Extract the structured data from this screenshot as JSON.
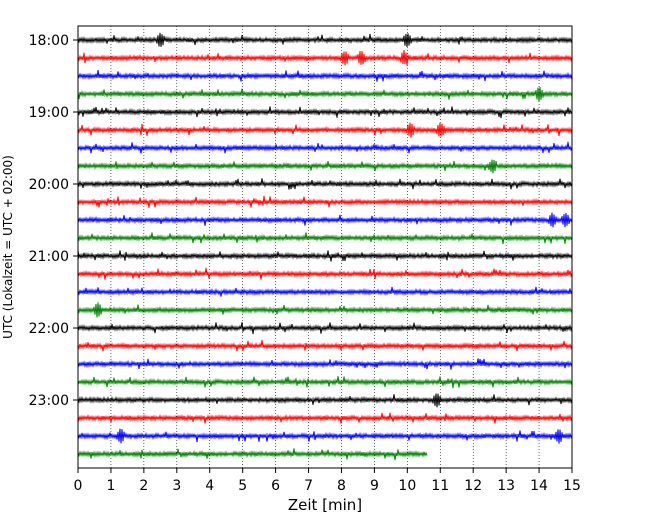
{
  "chart_data": {
    "type": "line",
    "title": "",
    "xlabel": "Zeit  [min]",
    "ylabel": "UTC (Lokalzeit = UTC + 02:00)",
    "xlim": [
      0,
      15
    ],
    "x_ticks": [
      "0",
      "1",
      "2",
      "3",
      "4",
      "5",
      "6",
      "7",
      "8",
      "9",
      "10",
      "11",
      "12",
      "13",
      "14",
      "15"
    ],
    "y_tick_labels": [
      "18:00",
      "19:00",
      "20:00",
      "21:00",
      "22:00",
      "23:00"
    ],
    "grid": "vertical-dotted",
    "trace_interval_min": 15,
    "trace_colors": [
      "#000000",
      "#ff0000",
      "#0000ff",
      "#008000"
    ],
    "traces": [
      {
        "start": "18:00",
        "end_min": 15
      },
      {
        "start": "18:15",
        "end_min": 15
      },
      {
        "start": "18:30",
        "end_min": 15
      },
      {
        "start": "18:45",
        "end_min": 15
      },
      {
        "start": "19:00",
        "end_min": 15
      },
      {
        "start": "19:15",
        "end_min": 15
      },
      {
        "start": "19:30",
        "end_min": 15
      },
      {
        "start": "19:45",
        "end_min": 15
      },
      {
        "start": "20:00",
        "end_min": 15
      },
      {
        "start": "20:15",
        "end_min": 15
      },
      {
        "start": "20:30",
        "end_min": 15
      },
      {
        "start": "20:45",
        "end_min": 15
      },
      {
        "start": "21:00",
        "end_min": 15
      },
      {
        "start": "21:15",
        "end_min": 15
      },
      {
        "start": "21:30",
        "end_min": 15
      },
      {
        "start": "21:45",
        "end_min": 15
      },
      {
        "start": "22:00",
        "end_min": 15
      },
      {
        "start": "22:15",
        "end_min": 15
      },
      {
        "start": "22:30",
        "end_min": 15
      },
      {
        "start": "22:45",
        "end_min": 15
      },
      {
        "start": "23:00",
        "end_min": 15
      },
      {
        "start": "23:15",
        "end_min": 15
      },
      {
        "start": "23:30",
        "end_min": 15
      },
      {
        "start": "23:45",
        "end_min": 10.6
      }
    ],
    "events": [
      {
        "trace": 0,
        "x": 2.5
      },
      {
        "trace": 0,
        "x": 10.0
      },
      {
        "trace": 1,
        "x": 8.1
      },
      {
        "trace": 1,
        "x": 8.6
      },
      {
        "trace": 1,
        "x": 9.9
      },
      {
        "trace": 3,
        "x": 14.0
      },
      {
        "trace": 5,
        "x": 10.1
      },
      {
        "trace": 5,
        "x": 11.0
      },
      {
        "trace": 7,
        "x": 12.6
      },
      {
        "trace": 10,
        "x": 14.4
      },
      {
        "trace": 10,
        "x": 14.8
      },
      {
        "trace": 15,
        "x": 0.6
      },
      {
        "trace": 20,
        "x": 10.9
      },
      {
        "trace": 22,
        "x": 1.3
      },
      {
        "trace": 22,
        "x": 14.6
      }
    ]
  }
}
